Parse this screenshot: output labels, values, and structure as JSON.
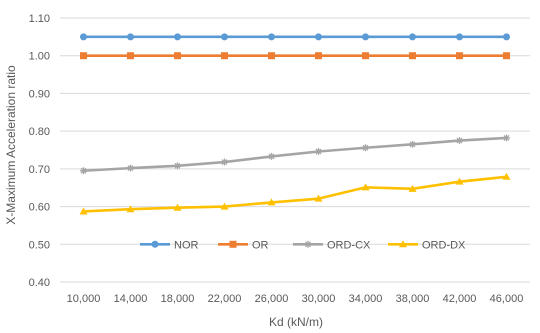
{
  "chart_data": {
    "type": "line",
    "xlabel": "Kd (kN/m)",
    "ylabel": "X-Maximum Acceleration ratio",
    "x": [
      "10,000",
      "14,000",
      "18,000",
      "22,000",
      "26,000",
      "30,000",
      "34,000",
      "38,000",
      "42,000",
      "46,000"
    ],
    "y_ticks": [
      "0.40",
      "0.50",
      "0.60",
      "0.70",
      "0.80",
      "0.90",
      "1.00",
      "1.10"
    ],
    "ylim": [
      0.4,
      1.1
    ],
    "grid": true,
    "legend_position": "inside-bottom",
    "series": [
      {
        "name": "NOR",
        "color": "#5B9BD5",
        "marker": "circle",
        "values": [
          1.05,
          1.05,
          1.05,
          1.05,
          1.05,
          1.05,
          1.05,
          1.05,
          1.05,
          1.05
        ]
      },
      {
        "name": "OR",
        "color": "#ED7D31",
        "marker": "square",
        "values": [
          1.0,
          1.0,
          1.0,
          1.0,
          1.0,
          1.0,
          1.0,
          1.0,
          1.0,
          1.0
        ]
      },
      {
        "name": "ORD-CX",
        "color": "#A5A5A5",
        "marker": "star",
        "values": [
          0.695,
          0.702,
          0.708,
          0.718,
          0.733,
          0.746,
          0.756,
          0.765,
          0.775,
          0.782
        ]
      },
      {
        "name": "ORD-DX",
        "color": "#FFC000",
        "marker": "triangle",
        "values": [
          0.587,
          0.593,
          0.597,
          0.6,
          0.611,
          0.621,
          0.651,
          0.647,
          0.666,
          0.679
        ]
      }
    ]
  }
}
